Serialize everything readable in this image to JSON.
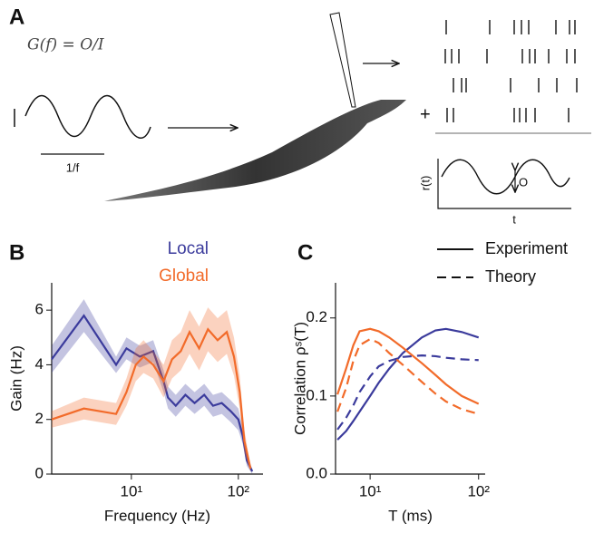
{
  "panel_labels": [
    "A",
    "B",
    "C"
  ],
  "schematic": {
    "formula": "G(f) = O/I",
    "period_label": "1/f",
    "plus": "+",
    "rate_label": "r(t)",
    "amplitude_label": "O",
    "time_label": "t"
  },
  "chart_data": [
    {
      "type": "line",
      "xscale": "log",
      "xlim": [
        1.8,
        170
      ],
      "ylim": [
        0,
        7
      ],
      "xticks": [
        {
          "value": 10,
          "label": "10¹"
        },
        {
          "value": 100,
          "label": "10²"
        }
      ],
      "yticks": [
        0,
        2,
        4,
        6
      ],
      "xlabel": "Frequency (Hz)",
      "ylabel": "Gain (Hz)",
      "series": [
        {
          "name": "Local",
          "color": "#3b3b9c",
          "x": [
            1.8,
            3.6,
            7.2,
            9,
            12,
            16,
            20,
            22,
            26,
            32,
            39,
            48,
            58,
            70,
            85,
            100,
            110,
            120,
            135
          ],
          "values": [
            4.2,
            5.8,
            4.0,
            4.6,
            4.3,
            4.5,
            3.4,
            2.8,
            2.5,
            2.9,
            2.6,
            2.9,
            2.5,
            2.6,
            2.3,
            2.0,
            1.4,
            0.5,
            0.1
          ],
          "error": [
            0.5,
            0.6,
            0.3,
            0.4,
            0.4,
            0.4,
            0.4,
            0.4,
            0.4,
            0.4,
            0.4,
            0.4,
            0.4,
            0.4,
            0.4,
            0.4,
            0.3,
            0.2,
            0.1
          ]
        },
        {
          "name": "Global",
          "color": "#f26b2a",
          "x": [
            1.8,
            3.6,
            7.2,
            9,
            11,
            13,
            16,
            20,
            24,
            29,
            35,
            43,
            52,
            64,
            78,
            91,
            103,
            114,
            130
          ],
          "values": [
            2.0,
            2.4,
            2.2,
            3.0,
            4.0,
            4.3,
            4.0,
            3.4,
            4.2,
            4.5,
            5.2,
            4.6,
            5.3,
            4.9,
            5.2,
            4.3,
            3.0,
            1.2,
            0.2
          ],
          "error": [
            0.3,
            0.4,
            0.4,
            0.5,
            0.6,
            0.6,
            0.5,
            0.6,
            0.7,
            0.7,
            0.8,
            0.8,
            0.8,
            0.8,
            0.8,
            0.7,
            0.6,
            0.4,
            0.1
          ]
        }
      ]
    },
    {
      "type": "line",
      "xscale": "log",
      "xlim": [
        4.8,
        115
      ],
      "ylim": [
        0,
        0.245
      ],
      "xticks": [
        {
          "value": 10,
          "label": "10¹"
        },
        {
          "value": 100,
          "label": "10²"
        }
      ],
      "yticks": [
        {
          "value": 0,
          "label": "0.0"
        },
        0.1,
        0.2
      ],
      "xlabel": "T (ms)",
      "ylabel": "Correlation ρˢ(T)",
      "legend": [
        {
          "label": "Experiment",
          "dashed": false
        },
        {
          "label": "Theory",
          "dashed": true
        }
      ],
      "series": [
        {
          "color": "#3b3b9c",
          "dashed": false,
          "x": [
            5,
            6,
            7,
            8,
            10,
            12,
            15,
            20,
            30,
            40,
            50,
            70,
            100
          ],
          "values": [
            0.044,
            0.055,
            0.068,
            0.08,
            0.1,
            0.117,
            0.135,
            0.155,
            0.175,
            0.184,
            0.186,
            0.182,
            0.175
          ]
        },
        {
          "color": "#3b3b9c",
          "dashed": true,
          "x": [
            5,
            6,
            7,
            8,
            10,
            12,
            15,
            20,
            30,
            40,
            50,
            70,
            100
          ],
          "values": [
            0.057,
            0.072,
            0.088,
            0.105,
            0.125,
            0.138,
            0.145,
            0.15,
            0.152,
            0.151,
            0.149,
            0.147,
            0.146
          ]
        },
        {
          "color": "#f26b2a",
          "dashed": false,
          "x": [
            5,
            6,
            7,
            8,
            10,
            12,
            15,
            20,
            30,
            40,
            50,
            70,
            100
          ],
          "values": [
            0.102,
            0.135,
            0.165,
            0.183,
            0.186,
            0.183,
            0.175,
            0.162,
            0.142,
            0.127,
            0.115,
            0.1,
            0.09
          ]
        },
        {
          "color": "#f26b2a",
          "dashed": true,
          "x": [
            5,
            6,
            7,
            8,
            10,
            12,
            15,
            20,
            30,
            40,
            50,
            70,
            100
          ],
          "values": [
            0.08,
            0.11,
            0.145,
            0.165,
            0.173,
            0.168,
            0.155,
            0.14,
            0.118,
            0.103,
            0.093,
            0.083,
            0.077
          ]
        }
      ]
    }
  ]
}
